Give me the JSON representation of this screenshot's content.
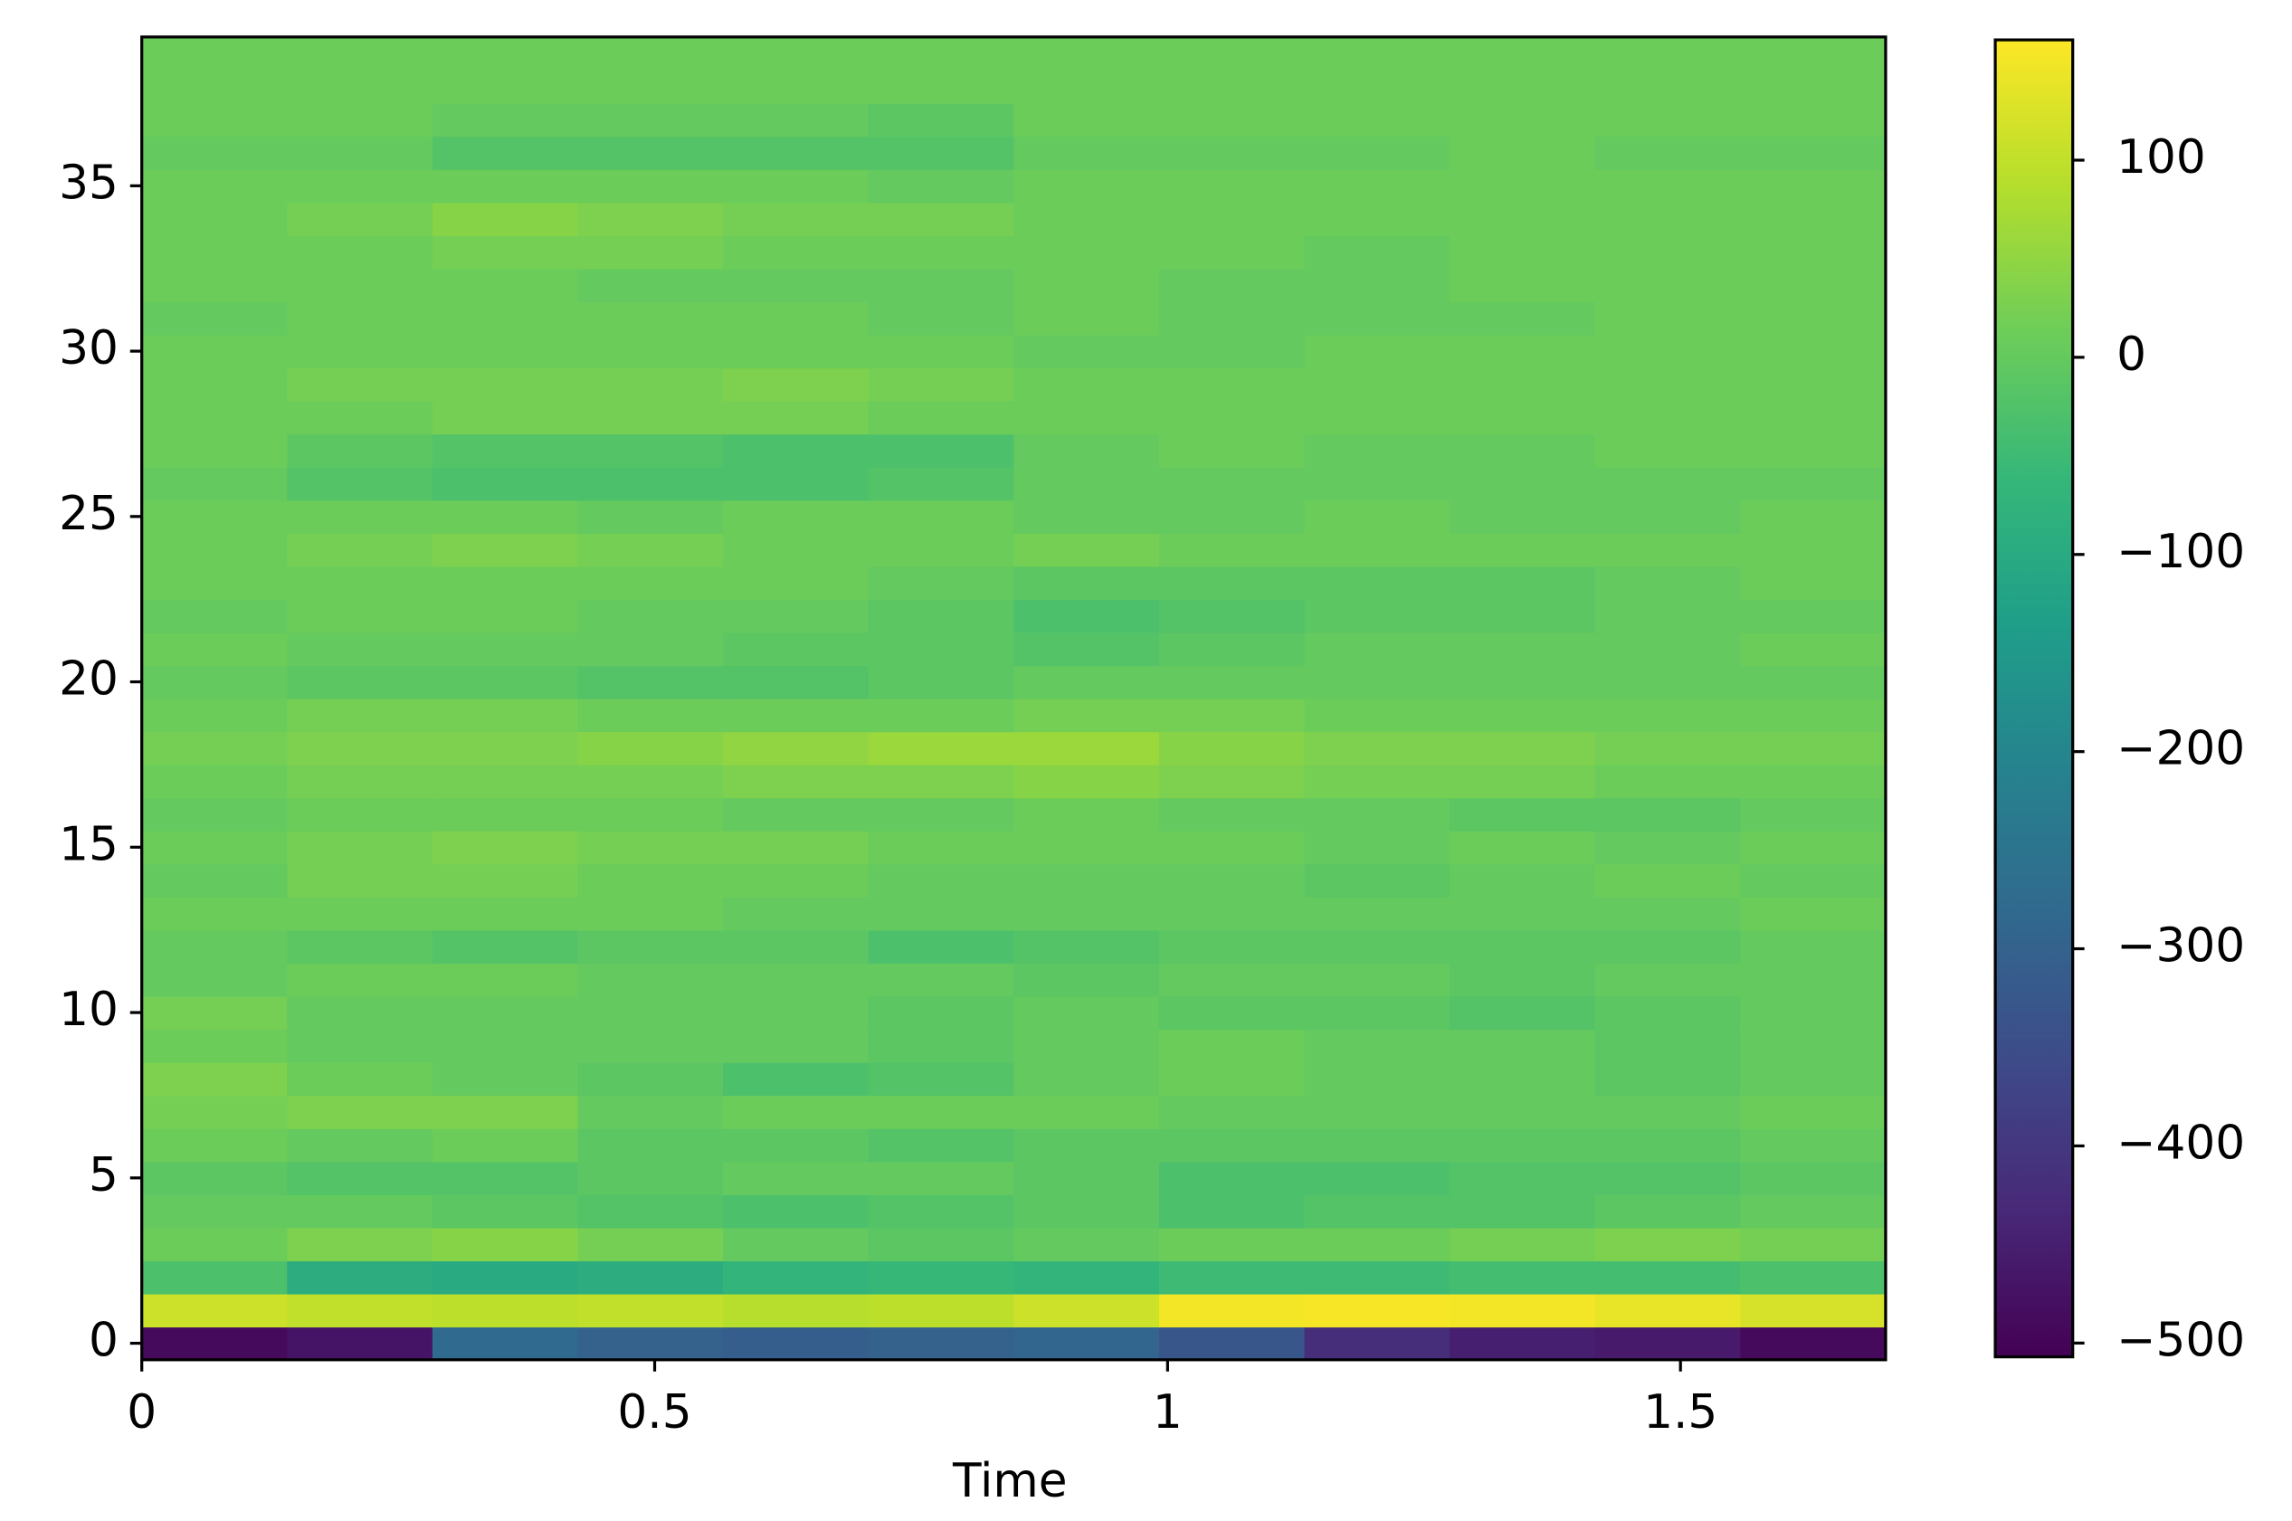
{
  "chart_data": {
    "type": "heatmap",
    "x_label": "Time",
    "xlim": [
      0,
      1.7
    ],
    "ylim": [
      -0.5,
      39.5
    ],
    "xticks": [
      0,
      0.5,
      1,
      1.5
    ],
    "yticks": [
      0,
      5,
      10,
      15,
      20,
      25,
      30,
      35
    ],
    "colormap": "viridis",
    "clim": [
      -507,
      161
    ],
    "colorbar_ticks": [
      {
        "value": -500,
        "label": "−500"
      },
      {
        "value": -400,
        "label": "−400"
      },
      {
        "value": -300,
        "label": "−300"
      },
      {
        "value": -200,
        "label": "−200"
      },
      {
        "value": -100,
        "label": "−100"
      },
      0,
      100
    ],
    "values": [
      [
        -490,
        -470,
        -280,
        -300,
        -310,
        -300,
        -290,
        -330,
        -420,
        -450,
        -460,
        -490
      ],
      [
        110,
        100,
        95,
        100,
        90,
        95,
        110,
        150,
        155,
        150,
        140,
        120
      ],
      [
        -30,
        -90,
        -100,
        -90,
        -70,
        -60,
        -70,
        -50,
        -50,
        -40,
        -40,
        -30
      ],
      [
        10,
        30,
        40,
        20,
        0,
        -10,
        0,
        10,
        10,
        20,
        30,
        20
      ],
      [
        0,
        0,
        -10,
        -20,
        -30,
        -20,
        -10,
        -30,
        -20,
        -20,
        -10,
        0
      ],
      [
        -10,
        -20,
        -20,
        -10,
        0,
        0,
        -10,
        -30,
        -30,
        -20,
        -20,
        -10
      ],
      [
        10,
        0,
        10,
        -10,
        -10,
        -20,
        -10,
        -10,
        -10,
        -10,
        -10,
        0
      ],
      [
        20,
        30,
        30,
        0,
        10,
        10,
        10,
        0,
        0,
        0,
        0,
        10
      ],
      [
        30,
        10,
        0,
        -10,
        -30,
        -20,
        0,
        10,
        0,
        0,
        -10,
        0
      ],
      [
        10,
        0,
        0,
        0,
        0,
        -10,
        0,
        10,
        0,
        0,
        -10,
        0
      ],
      [
        20,
        0,
        0,
        0,
        0,
        -10,
        0,
        -10,
        -10,
        -20,
        -10,
        0
      ],
      [
        0,
        10,
        10,
        0,
        0,
        0,
        -10,
        0,
        0,
        -10,
        0,
        0
      ],
      [
        0,
        -10,
        -20,
        -10,
        -10,
        -30,
        -20,
        -10,
        -10,
        -10,
        -10,
        0
      ],
      [
        10,
        10,
        10,
        10,
        0,
        0,
        0,
        0,
        0,
        0,
        0,
        10
      ],
      [
        0,
        20,
        20,
        10,
        10,
        0,
        0,
        0,
        -10,
        0,
        10,
        0
      ],
      [
        10,
        20,
        30,
        20,
        20,
        10,
        10,
        10,
        0,
        10,
        0,
        10
      ],
      [
        0,
        10,
        10,
        10,
        0,
        0,
        10,
        0,
        0,
        -10,
        -10,
        0
      ],
      [
        10,
        20,
        20,
        20,
        30,
        30,
        40,
        30,
        20,
        20,
        10,
        10
      ],
      [
        20,
        30,
        30,
        40,
        50,
        60,
        60,
        40,
        30,
        30,
        20,
        20
      ],
      [
        10,
        20,
        20,
        10,
        10,
        10,
        20,
        20,
        10,
        10,
        10,
        10
      ],
      [
        0,
        -10,
        -10,
        -20,
        -20,
        -10,
        0,
        0,
        0,
        0,
        0,
        0
      ],
      [
        10,
        0,
        0,
        0,
        -10,
        -10,
        -20,
        -10,
        0,
        0,
        0,
        10
      ],
      [
        0,
        10,
        10,
        0,
        0,
        -10,
        -30,
        -20,
        -10,
        -10,
        0,
        0
      ],
      [
        10,
        10,
        10,
        10,
        10,
        0,
        -10,
        -10,
        -10,
        -10,
        0,
        10
      ],
      [
        10,
        20,
        30,
        20,
        10,
        10,
        20,
        10,
        10,
        10,
        10,
        10
      ],
      [
        10,
        10,
        10,
        0,
        10,
        10,
        0,
        0,
        10,
        0,
        0,
        10
      ],
      [
        0,
        -20,
        -30,
        -30,
        -30,
        -20,
        0,
        0,
        0,
        0,
        0,
        0
      ],
      [
        10,
        -10,
        -20,
        -20,
        -30,
        -30,
        0,
        10,
        0,
        0,
        10,
        10
      ],
      [
        10,
        10,
        20,
        20,
        20,
        10,
        10,
        10,
        10,
        10,
        10,
        10
      ],
      [
        10,
        20,
        20,
        20,
        30,
        20,
        10,
        10,
        10,
        10,
        10,
        10
      ],
      [
        10,
        10,
        10,
        10,
        10,
        10,
        0,
        0,
        10,
        10,
        10,
        10
      ],
      [
        0,
        10,
        10,
        10,
        10,
        0,
        10,
        0,
        0,
        0,
        10,
        10
      ],
      [
        10,
        10,
        10,
        0,
        0,
        0,
        10,
        0,
        0,
        10,
        10,
        10
      ],
      [
        10,
        10,
        20,
        20,
        10,
        10,
        10,
        10,
        0,
        10,
        10,
        10
      ],
      [
        10,
        20,
        40,
        30,
        20,
        20,
        10,
        10,
        10,
        10,
        10,
        10
      ],
      [
        10,
        10,
        10,
        10,
        10,
        0,
        10,
        10,
        10,
        10,
        10,
        10
      ],
      [
        0,
        0,
        -20,
        -20,
        -20,
        -20,
        0,
        0,
        0,
        10,
        0,
        0
      ],
      [
        10,
        10,
        0,
        0,
        0,
        -10,
        10,
        10,
        10,
        10,
        10,
        10
      ],
      [
        10,
        10,
        10,
        10,
        10,
        10,
        10,
        10,
        10,
        10,
        10,
        10
      ],
      [
        10,
        10,
        10,
        10,
        10,
        10,
        10,
        10,
        10,
        10,
        10,
        10
      ]
    ]
  }
}
